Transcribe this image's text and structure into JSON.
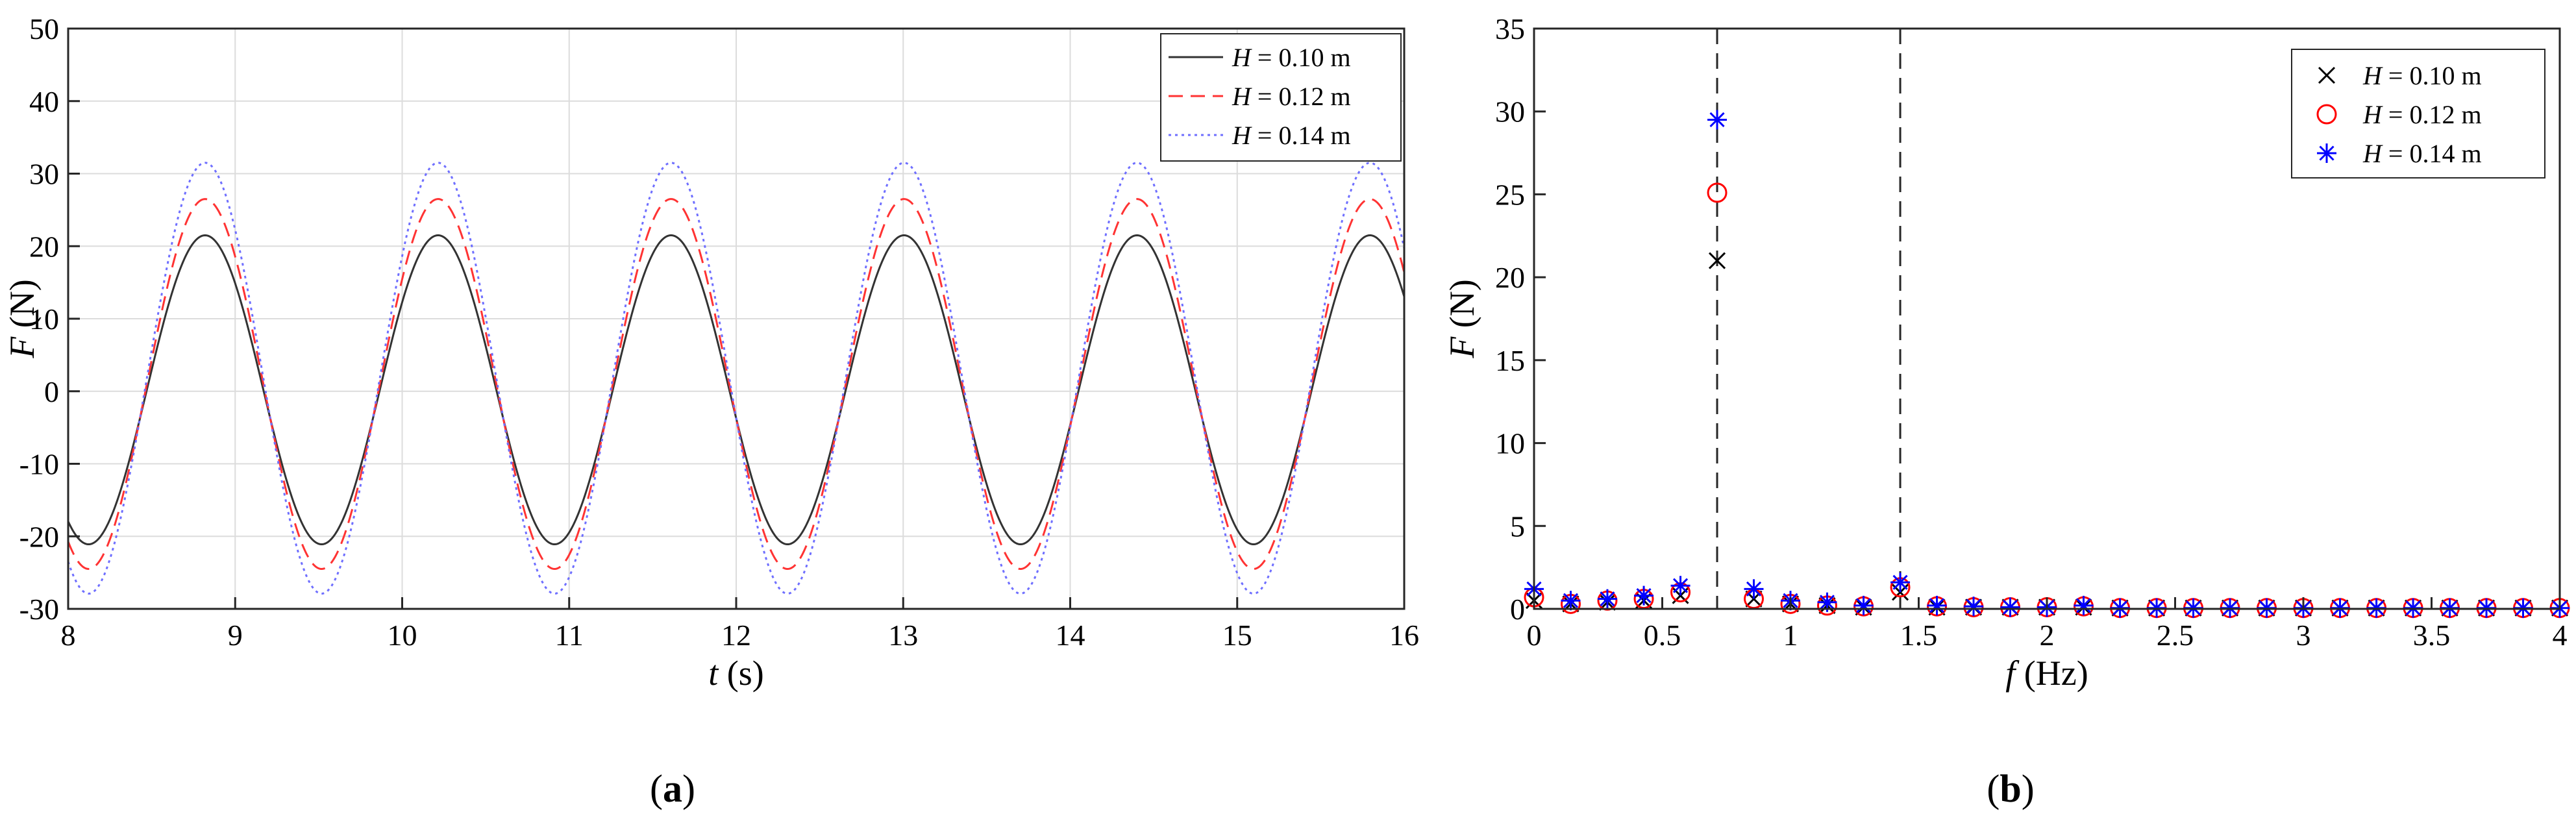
{
  "figure": {
    "panels": [
      "(a)",
      "(b)"
    ]
  },
  "chart_data": [
    {
      "id": "a",
      "type": "line",
      "panel_label": "a",
      "xlabel_var": "t",
      "xlabel_unit": " (s)",
      "ylabel_var": "F",
      "ylabel_unit": " (N)",
      "xlim": [
        8,
        16
      ],
      "ylim": [
        -30,
        50
      ],
      "xticks": [
        8,
        9,
        10,
        11,
        12,
        13,
        14,
        15,
        16
      ],
      "yticks": [
        -30,
        -20,
        -10,
        0,
        10,
        20,
        30,
        40,
        50
      ],
      "grid": true,
      "legend_position": "top-right",
      "period": 1.395,
      "peak_time": 8.82,
      "series": [
        {
          "name_var": "H",
          "name_rest": " = 0.10 m",
          "color": "#333333",
          "dash": "solid",
          "amplitude": 21.3,
          "offset": 0.2
        },
        {
          "name_var": "H",
          "name_rest": " = 0.12 m",
          "color": "#ff3333",
          "dash": "dashed",
          "amplitude": 25.5,
          "offset": 1.0
        },
        {
          "name_var": "H",
          "name_rest": " = 0.14 m",
          "color": "#6f6fff",
          "dash": "dotted",
          "amplitude": 29.7,
          "offset": 1.8
        }
      ]
    },
    {
      "id": "b",
      "type": "scatter",
      "panel_label": "b",
      "xlabel_var": "f",
      "xlabel_unit": " (Hz)",
      "ylabel_var": "F",
      "ylabel_unit": " (N)",
      "xlim": [
        0,
        4
      ],
      "ylim": [
        0,
        35
      ],
      "xticks": [
        0,
        0.5,
        1,
        1.5,
        2,
        2.5,
        3,
        3.5,
        4
      ],
      "xtick_labels": [
        "0",
        "0.5",
        "1",
        "1.5",
        "2",
        "2.5",
        "3",
        "3.5",
        "4"
      ],
      "yticks": [
        0,
        5,
        10,
        15,
        20,
        25,
        30,
        35
      ],
      "grid": false,
      "legend_position": "top-right",
      "vlines": [
        0.714,
        1.428
      ],
      "x": [
        0,
        0.143,
        0.286,
        0.428,
        0.571,
        0.714,
        0.857,
        1.0,
        1.143,
        1.285,
        1.428,
        1.571,
        1.714,
        1.857,
        2.0,
        2.143,
        2.285,
        2.428,
        2.571,
        2.714,
        2.857,
        3.0,
        3.143,
        3.285,
        3.428,
        3.571,
        3.714,
        3.857,
        4.0
      ],
      "series": [
        {
          "name_var": "H",
          "name_rest": " = 0.10 m",
          "color": "#000000",
          "marker": "x",
          "values": [
            0.5,
            0.3,
            0.4,
            0.5,
            0.8,
            21.0,
            0.6,
            0.3,
            0.2,
            0.1,
            1.0,
            0.1,
            0.1,
            0.1,
            0.1,
            0.1,
            0.05,
            0.05,
            0.05,
            0.05,
            0.05,
            0.05,
            0.05,
            0.05,
            0.05,
            0.05,
            0.05,
            0.05,
            0.05
          ]
        },
        {
          "name_var": "H",
          "name_rest": " = 0.12 m",
          "color": "#ff0000",
          "marker": "o",
          "values": [
            0.7,
            0.3,
            0.5,
            0.6,
            1.0,
            25.1,
            0.6,
            0.3,
            0.2,
            0.15,
            1.3,
            0.15,
            0.1,
            0.1,
            0.1,
            0.15,
            0.05,
            0.05,
            0.05,
            0.05,
            0.05,
            0.05,
            0.05,
            0.05,
            0.05,
            0.05,
            0.05,
            0.05,
            0.05
          ]
        },
        {
          "name_var": "H",
          "name_rest": " = 0.14 m",
          "color": "#0000ff",
          "marker": "*",
          "values": [
            1.2,
            0.5,
            0.6,
            0.8,
            1.4,
            29.5,
            1.2,
            0.5,
            0.4,
            0.2,
            1.6,
            0.2,
            0.15,
            0.1,
            0.1,
            0.2,
            0.05,
            0.05,
            0.05,
            0.05,
            0.05,
            0.05,
            0.05,
            0.05,
            0.05,
            0.05,
            0.05,
            0.05,
            0.05
          ]
        }
      ]
    }
  ]
}
